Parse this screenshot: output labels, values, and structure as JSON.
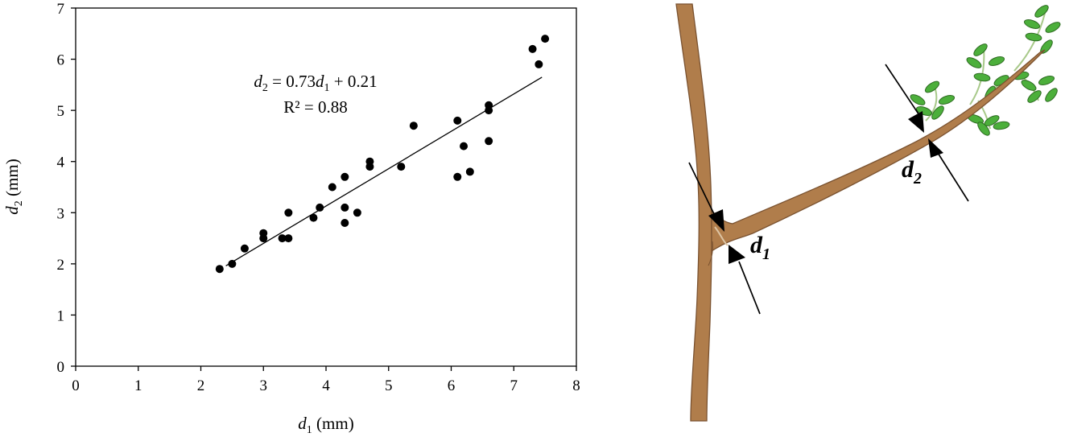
{
  "chart_data": {
    "type": "scatter",
    "xlabel": {
      "var": "d",
      "sub": "1",
      "unit": " (mm)"
    },
    "ylabel": {
      "var": "d",
      "sub": "2",
      "unit": " (mm)"
    },
    "xlim": [
      0,
      8
    ],
    "ylim": [
      0,
      7
    ],
    "xticks": [
      0,
      1,
      2,
      3,
      4,
      5,
      6,
      7,
      8
    ],
    "yticks": [
      0,
      1,
      2,
      3,
      4,
      5,
      6,
      7
    ],
    "grid": false,
    "points": [
      [
        2.3,
        1.9
      ],
      [
        2.5,
        2.0
      ],
      [
        2.7,
        2.3
      ],
      [
        3.0,
        2.6
      ],
      [
        3.0,
        2.5
      ],
      [
        3.3,
        2.5
      ],
      [
        3.4,
        2.5
      ],
      [
        3.4,
        3.0
      ],
      [
        3.8,
        2.9
      ],
      [
        3.9,
        3.1
      ],
      [
        4.1,
        3.5
      ],
      [
        4.3,
        3.7
      ],
      [
        4.3,
        3.1
      ],
      [
        4.3,
        2.8
      ],
      [
        4.5,
        3.0
      ],
      [
        4.7,
        4.0
      ],
      [
        4.7,
        3.9
      ],
      [
        5.2,
        3.9
      ],
      [
        5.4,
        4.7
      ],
      [
        6.1,
        4.8
      ],
      [
        6.1,
        3.7
      ],
      [
        6.2,
        4.3
      ],
      [
        6.3,
        3.8
      ],
      [
        6.6,
        5.1
      ],
      [
        6.6,
        5.0
      ],
      [
        6.6,
        4.4
      ],
      [
        7.3,
        6.2
      ],
      [
        7.4,
        5.9
      ],
      [
        7.5,
        6.4
      ]
    ],
    "trendline": {
      "slope": 0.73,
      "intercept": 0.21,
      "x_range": [
        2.4,
        7.45
      ]
    },
    "equation": {
      "lhs_var": "d",
      "lhs_sub": "2",
      "eq_mid": " = 0.73",
      "rhs_var": "d",
      "rhs_sub": "1",
      "rhs_tail": " + 0.21"
    },
    "r2_text": "R² = 0.88"
  },
  "diagram": {
    "label_d1": {
      "var": "d",
      "sub": "1"
    },
    "label_d2": {
      "var": "d",
      "sub": "2"
    },
    "branch_color": "#B07D4B",
    "outline_color": "#7A5230",
    "leaf_color": "#4CAF3B",
    "leaf_outline": "#2E6B22"
  }
}
